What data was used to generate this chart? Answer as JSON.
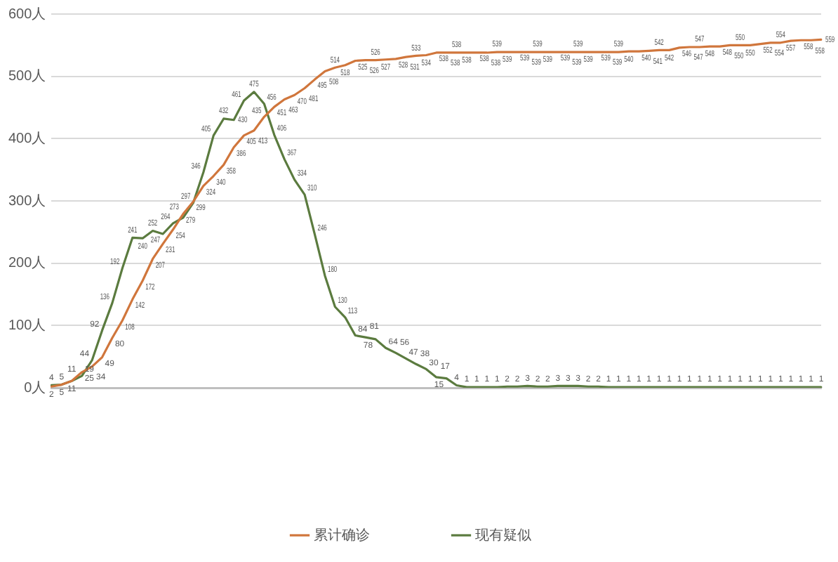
{
  "chart_data": {
    "type": "line",
    "categories": [
      null,
      null,
      null,
      null,
      null,
      null,
      null,
      null,
      null,
      null,
      null,
      null,
      null,
      null,
      null,
      null,
      null,
      null,
      null,
      null,
      null,
      null,
      null,
      null,
      null,
      null,
      null,
      null,
      null,
      null,
      null,
      null,
      null,
      null,
      null,
      null,
      null,
      null,
      null,
      null,
      null,
      null,
      null,
      null,
      null,
      null,
      null,
      null,
      null,
      null,
      null,
      null,
      null,
      null,
      null,
      null,
      null,
      null,
      null,
      null,
      null,
      null,
      null,
      null,
      null,
      null,
      null,
      null,
      null,
      null,
      null,
      null,
      null,
      null,
      null,
      null,
      null
    ],
    "series": [
      {
        "name": "累计确诊",
        "color": "#d0763c",
        "values": [
          2,
          5,
          11,
          25,
          34,
          49,
          80,
          108,
          142,
          172,
          207,
          231,
          254,
          279,
          299,
          324,
          340,
          358,
          386,
          405,
          413,
          435,
          451,
          463,
          470,
          481,
          495,
          508,
          514,
          518,
          525,
          526,
          526,
          527,
          528,
          531,
          533,
          534,
          538,
          538,
          538,
          538,
          538,
          538,
          539,
          539,
          539,
          539,
          539,
          539,
          539,
          539,
          539,
          539,
          539,
          539,
          539,
          540,
          540,
          541,
          542,
          542,
          546,
          547,
          547,
          548,
          548,
          550,
          550,
          550,
          552,
          554,
          554,
          557,
          558,
          558,
          559
        ]
      },
      {
        "name": "现有疑似",
        "color": "#5b7b3f",
        "values": [
          4,
          5,
          11,
          19,
          44,
          92,
          136,
          192,
          241,
          240,
          252,
          247,
          264,
          273,
          297,
          346,
          405,
          432,
          430,
          461,
          475,
          456,
          406,
          367,
          334,
          310,
          246,
          180,
          130,
          113,
          84,
          81,
          78,
          64,
          56,
          47,
          38,
          30,
          17,
          15,
          4,
          1,
          1,
          1,
          1,
          2,
          2,
          3,
          2,
          2,
          3,
          3,
          3,
          2,
          2,
          1,
          1,
          1,
          1,
          1,
          1,
          1,
          1,
          1,
          1,
          1,
          1,
          1,
          1,
          1,
          1,
          1,
          1,
          1,
          1,
          1,
          1
        ]
      }
    ],
    "ylim": [
      0,
      600
    ],
    "yticks": [
      {
        "value": 0,
        "label": "0人"
      },
      {
        "value": 100,
        "label": "100人"
      },
      {
        "value": 200,
        "label": "200人"
      },
      {
        "value": 300,
        "label": "300人"
      },
      {
        "value": 400,
        "label": "400人"
      },
      {
        "value": 500,
        "label": "500人"
      },
      {
        "value": 600,
        "label": "600人"
      }
    ],
    "grid": "y",
    "legend": "bottom",
    "marker": "none",
    "data_labels": true
  }
}
